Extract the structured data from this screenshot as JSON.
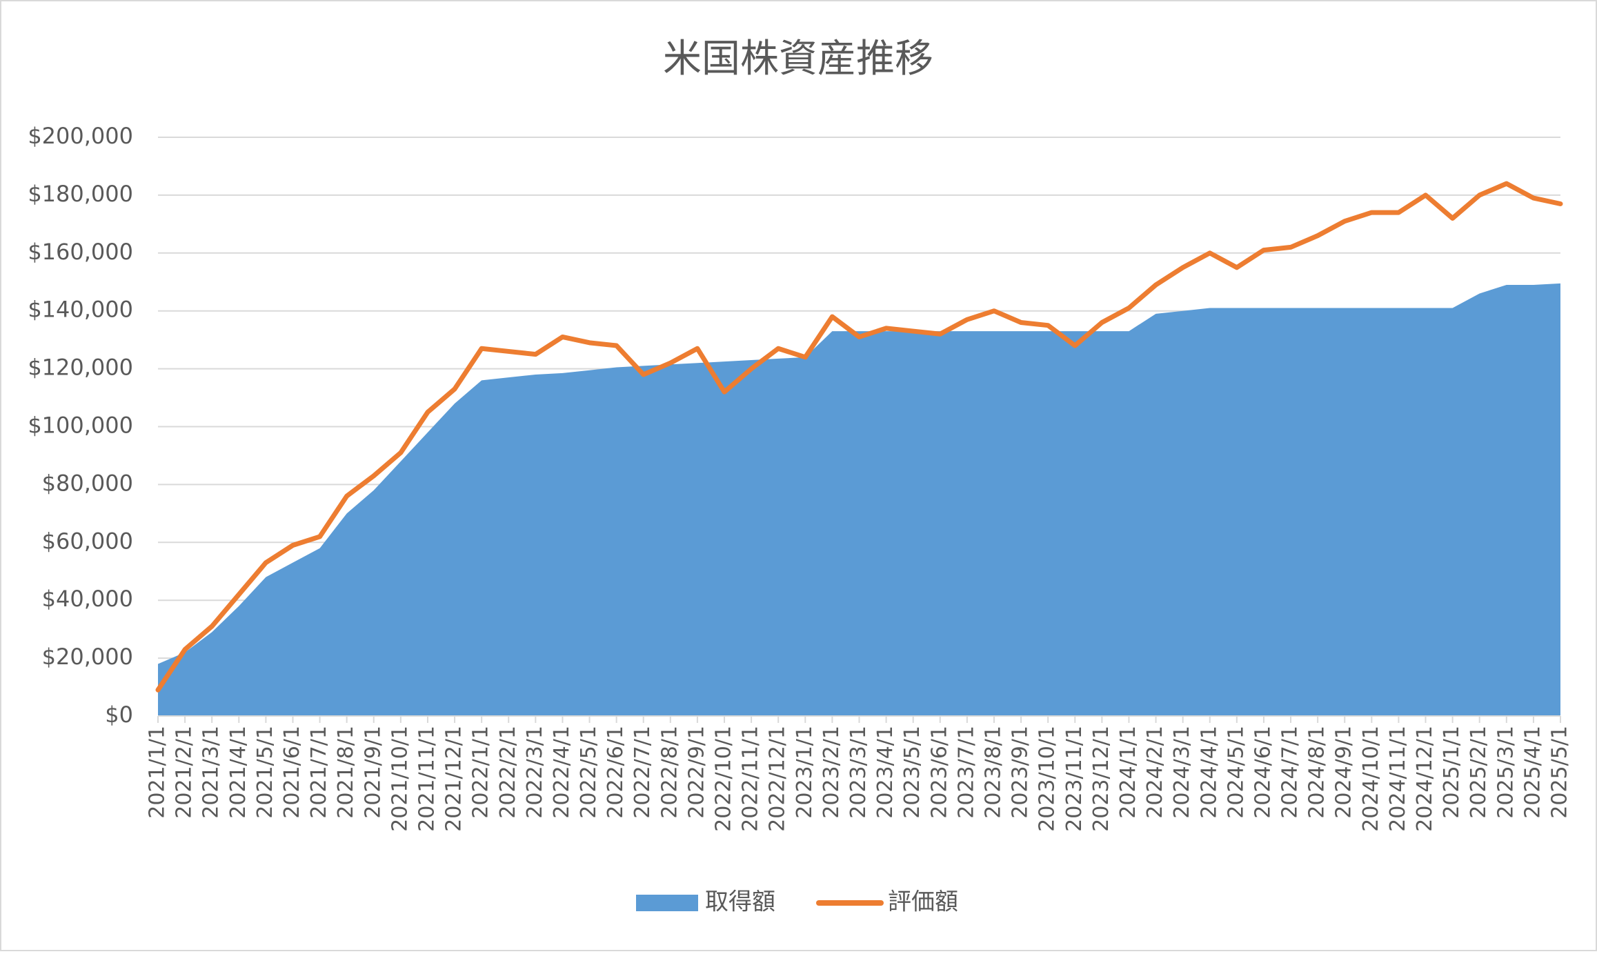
{
  "chart_data": {
    "type": "area-line",
    "title": "米国株資産推移",
    "categories": [
      "2021/1/1",
      "2021/2/1",
      "2021/3/1",
      "2021/4/1",
      "2021/5/1",
      "2021/6/1",
      "2021/7/1",
      "2021/8/1",
      "2021/9/1",
      "2021/10/1",
      "2021/11/1",
      "2021/12/1",
      "2022/1/1",
      "2022/2/1",
      "2022/3/1",
      "2022/4/1",
      "2022/5/1",
      "2022/6/1",
      "2022/7/1",
      "2022/8/1",
      "2022/9/1",
      "2022/10/1",
      "2022/11/1",
      "2022/12/1",
      "2023/1/1",
      "2023/2/1",
      "2023/3/1",
      "2023/4/1",
      "2023/5/1",
      "2023/6/1",
      "2023/7/1",
      "2023/8/1",
      "2023/9/1",
      "2023/10/1",
      "2023/11/1",
      "2023/12/1",
      "2024/1/1",
      "2024/2/1",
      "2024/3/1",
      "2024/4/1",
      "2024/5/1",
      "2024/6/1",
      "2024/7/1",
      "2024/8/1",
      "2024/9/1",
      "2024/10/1",
      "2024/11/1",
      "2024/12/1",
      "2025/1/1",
      "2025/2/1",
      "2025/3/1",
      "2025/4/1",
      "2025/5/1"
    ],
    "series": [
      {
        "name": "取得額",
        "type": "area",
        "color": "#5b9bd5",
        "values": [
          18000,
          22000,
          29000,
          38000,
          48000,
          53000,
          58000,
          70000,
          78000,
          88000,
          98000,
          108000,
          116000,
          117000,
          118000,
          118500,
          119500,
          120500,
          121000,
          121500,
          122000,
          122500,
          123000,
          123500,
          124000,
          133000,
          133000,
          133000,
          133000,
          133000,
          133000,
          133000,
          133000,
          133000,
          133000,
          133000,
          133000,
          139000,
          140000,
          141000,
          141000,
          141000,
          141000,
          141000,
          141000,
          141000,
          141000,
          141000,
          141000,
          146000,
          149000,
          149000,
          149500
        ]
      },
      {
        "name": "評価額",
        "type": "line",
        "color": "#ed7d31",
        "values": [
          9000,
          23000,
          31000,
          42000,
          53000,
          59000,
          62000,
          76000,
          83000,
          91000,
          105000,
          113000,
          127000,
          126000,
          125000,
          131000,
          129000,
          128000,
          118000,
          122000,
          127000,
          112000,
          120000,
          127000,
          124000,
          138000,
          131000,
          134000,
          133000,
          132000,
          137000,
          140000,
          136000,
          135000,
          128000,
          136000,
          141000,
          149000,
          155000,
          160000,
          155000,
          161000,
          162000,
          166000,
          171000,
          174000,
          174000,
          180000,
          172000,
          180000,
          184000,
          179000,
          177000
        ]
      }
    ],
    "ylim": [
      0,
      200000
    ],
    "yticks": [
      {
        "value": 0,
        "label": "$0"
      },
      {
        "value": 20000,
        "label": "$20,000"
      },
      {
        "value": 40000,
        "label": "$40,000"
      },
      {
        "value": 60000,
        "label": "$60,000"
      },
      {
        "value": 80000,
        "label": "$80,000"
      },
      {
        "value": 100000,
        "label": "$100,000"
      },
      {
        "value": 120000,
        "label": "$120,000"
      },
      {
        "value": 140000,
        "label": "$140,000"
      },
      {
        "value": 160000,
        "label": "$160,000"
      },
      {
        "value": 180000,
        "label": "$180,000"
      },
      {
        "value": 200000,
        "label": "$200,000"
      }
    ],
    "grid": true,
    "legend": "bottom"
  }
}
